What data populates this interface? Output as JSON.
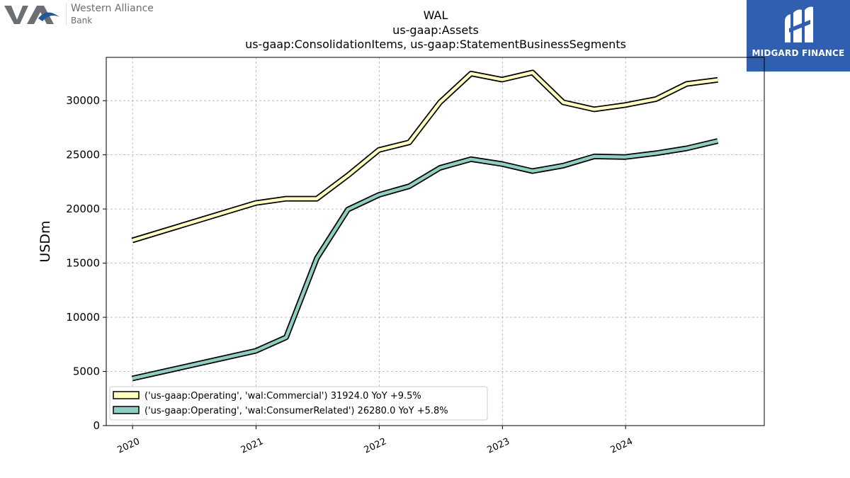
{
  "branding": {
    "left_logo": {
      "line1": "Western Alliance",
      "line2": "Bank",
      "icon": "wa-monogram-icon",
      "color": "#6b6e72",
      "accent": "#1d5a9c"
    },
    "right_logo": {
      "name": "MIDGARD FINANCE",
      "icon": "midgard-monogram-icon",
      "background": "#2f5fae"
    }
  },
  "chart_data": {
    "type": "line",
    "title": [
      "WAL",
      "us-gaap:Assets",
      "us-gaap:ConsolidationItems, us-gaap:StatementBusinessSegments"
    ],
    "xlabel": "",
    "ylabel": "USDm",
    "x_ticks": [
      "2020",
      "2021",
      "2022",
      "2023",
      "2024"
    ],
    "xlim": [
      "2019-10-15",
      "2025-02-15"
    ],
    "ylim": [
      0,
      34000
    ],
    "y_ticks": [
      0,
      5000,
      10000,
      15000,
      20000,
      25000,
      30000
    ],
    "grid": true,
    "legend_position": "lower-left",
    "series": [
      {
        "name": "('us-gaap:Operating', 'wal:Commercial') 31924.0 YoY +9.5%",
        "color": "#ffffc0",
        "x": [
          "2019-12-31",
          "2020-12-31",
          "2021-03-31",
          "2021-06-30",
          "2021-09-30",
          "2021-12-31",
          "2022-03-31",
          "2022-06-30",
          "2022-09-30",
          "2022-12-31",
          "2023-03-31",
          "2023-06-30",
          "2023-09-30",
          "2023-12-31",
          "2024-03-31",
          "2024-06-30",
          "2024-09-30"
        ],
        "y": [
          17100,
          20550,
          20950,
          20950,
          23100,
          25450,
          26150,
          29850,
          32500,
          31950,
          32600,
          29850,
          29200,
          29600,
          30150,
          31550,
          31924
        ]
      },
      {
        "name": "('us-gaap:Operating', 'wal:ConsumerRelated') 26280.0 YoY +5.8%",
        "color": "#8ecfc2",
        "x": [
          "2019-12-31",
          "2020-12-31",
          "2021-03-31",
          "2021-06-30",
          "2021-09-30",
          "2021-12-31",
          "2022-03-31",
          "2022-06-30",
          "2022-09-30",
          "2022-12-31",
          "2023-03-31",
          "2023-06-30",
          "2023-09-30",
          "2023-12-31",
          "2024-03-31",
          "2024-06-30",
          "2024-09-30"
        ],
        "y": [
          4350,
          6900,
          8150,
          15450,
          19950,
          21300,
          22100,
          23800,
          24600,
          24150,
          23500,
          24000,
          24850,
          24800,
          25150,
          25600,
          26280
        ]
      }
    ]
  }
}
